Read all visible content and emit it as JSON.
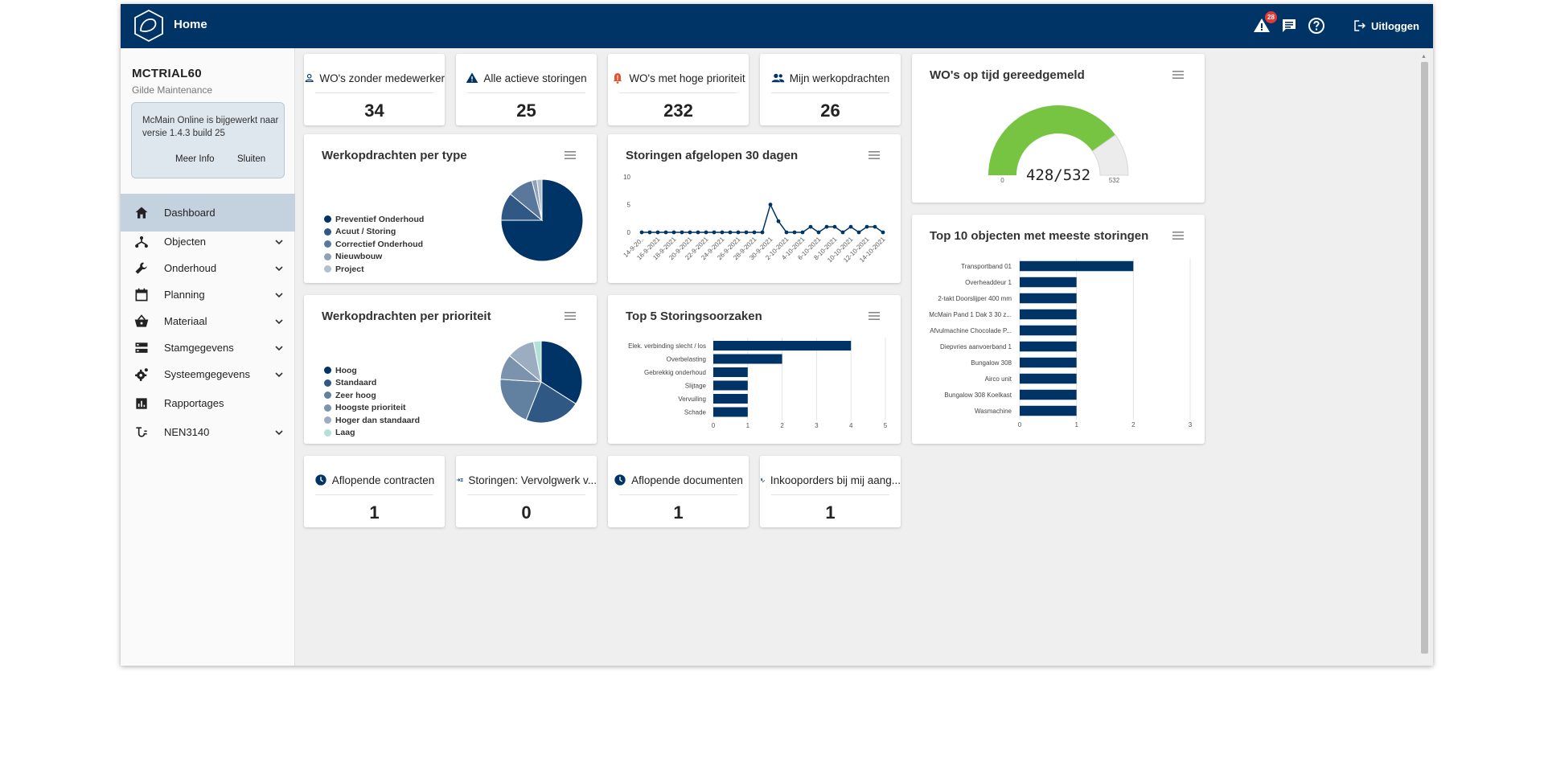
{
  "topbar": {
    "title": "Home",
    "notification_count": "28",
    "logout_label": "Uitloggen"
  },
  "sidebar": {
    "org_code": "MCTRIAL60",
    "org_name": "Gilde Maintenance",
    "update_notice": {
      "text": "McMain Online is bijgewerkt naar versie 1.4.3 build 25",
      "more_info": "Meer Info",
      "close": "Sluiten"
    },
    "items": [
      {
        "label": "Dashboard",
        "icon": "home-icon",
        "active": true,
        "expandable": false
      },
      {
        "label": "Objecten",
        "icon": "hierarchy-icon",
        "expandable": true
      },
      {
        "label": "Onderhoud",
        "icon": "wrench-icon",
        "expandable": true
      },
      {
        "label": "Planning",
        "icon": "calendar-icon",
        "expandable": true
      },
      {
        "label": "Materiaal",
        "icon": "basket-icon",
        "expandable": true
      },
      {
        "label": "Stamgegevens",
        "icon": "storage-icon",
        "expandable": true
      },
      {
        "label": "Systeemgegevens",
        "icon": "gear-icon",
        "expandable": true
      },
      {
        "label": "Rapportages",
        "icon": "bar-chart-icon",
        "expandable": false
      },
      {
        "label": "NEN3140",
        "icon": "electric-icon",
        "expandable": true
      }
    ]
  },
  "kpis_top": [
    {
      "title": "WO's zonder medewerker",
      "value": "34",
      "icon": "person-outline-icon"
    },
    {
      "title": "Alle actieve storingen",
      "value": "25",
      "icon": "warning-icon"
    },
    {
      "title": "WO's met hoge prioriteit",
      "value": "232",
      "icon": "alarm-bell-icon"
    },
    {
      "title": "Mijn werkopdrachten",
      "value": "26",
      "icon": "people-icon"
    }
  ],
  "kpis_bottom": [
    {
      "title": "Aflopende contracten",
      "value": "1",
      "icon": "clock-icon"
    },
    {
      "title": "Storingen: Vervolgwerk v...",
      "value": "0",
      "icon": "arrow-list-icon"
    },
    {
      "title": "Aflopende documenten",
      "value": "1",
      "icon": "clock-icon"
    },
    {
      "title": "Inkooporders bij mij aang...",
      "value": "1",
      "icon": "dollar-check-icon"
    }
  ],
  "colors": {
    "primary": "#003466",
    "gauge_green": "#76c442",
    "gauge_rest": "#ececec",
    "bar": "#003466",
    "badge": "#e53935",
    "active_nav": "#c4d2e0"
  },
  "charts": {
    "type_pie": {
      "title": "Werkopdrachten per type",
      "chart_data": {
        "type": "pie",
        "categories": [
          "Preventief Onderhoud",
          "Acuut / Storing",
          "Correctief Onderhoud",
          "Nieuwbouw",
          "Project"
        ],
        "values": [
          75,
          11,
          10,
          2,
          2
        ],
        "colors": [
          "#003466",
          "#2f5984",
          "#59789b",
          "#8ea1b7",
          "#b2bfcd"
        ],
        "legend": "left"
      }
    },
    "priority_pie": {
      "title": "Werkopdrachten per prioriteit",
      "chart_data": {
        "type": "pie",
        "categories": [
          "Hoog",
          "Standaard",
          "Zeer hoog",
          "Hoogste prioriteit",
          "Hoger dan standaard",
          "Laag"
        ],
        "values": [
          34,
          22,
          20,
          10,
          11,
          3
        ],
        "colors": [
          "#003466",
          "#2f5984",
          "#62809f",
          "#7b93ad",
          "#9cadc1",
          "#b2e2d7"
        ],
        "legend": "left"
      }
    },
    "line": {
      "title": "Storingen afgelopen 30 dagen",
      "chart_data": {
        "type": "line",
        "x": [
          "14-9-20..",
          "15-9-2021",
          "16-9-2021",
          "17-9-2021",
          "18-9-2021",
          "19-9-2021",
          "20-9-2021",
          "21-9-2021",
          "22-9-2021",
          "23-9-2021",
          "24-9-2021",
          "25-9-2021",
          "26-9-2021",
          "27-9-2021",
          "28-9-2021",
          "29-9-2021",
          "30-9-2021",
          "1-10-2021",
          "2-10-2021",
          "3-10-2021",
          "4-10-2021",
          "5-10-2021",
          "6-10-2021",
          "7-10-2021",
          "8-10-2021",
          "9-10-2021",
          "10-10-2021",
          "11-10-2021",
          "12-10-2021",
          "13-10-2021",
          "14-10-2021"
        ],
        "tick_labels": [
          "14-9-20..",
          "16-9-2021",
          "18-9-2021",
          "20-9-2021",
          "22-9-2021",
          "24-9-2021",
          "26-9-2021",
          "28-9-2021",
          "30-9-2021",
          "2-10-2021",
          "4-10-2021",
          "6-10-2021",
          "8-10-2021",
          "10-10-2021",
          "12-10-2021",
          "14-10-2021"
        ],
        "values": [
          0,
          0,
          0,
          0,
          0,
          0,
          0,
          0,
          0,
          0,
          0,
          0,
          0,
          0,
          0,
          0,
          5,
          2,
          0,
          0,
          0,
          1,
          0,
          1,
          1,
          0,
          1,
          0,
          1,
          1,
          0
        ],
        "ylim": [
          0,
          10
        ],
        "yticks": [
          0,
          5,
          10
        ],
        "grid": false
      }
    },
    "causes": {
      "title": "Top 5 Storingsoorzaken",
      "chart_data": {
        "type": "bar",
        "orientation": "horizontal",
        "categories": [
          "Elek. verbinding slecht / los",
          "Overbelasting",
          "Gebrekkig onderhoud",
          "Slijtage",
          "Vervuiling",
          "Schade"
        ],
        "values": [
          4,
          2,
          1,
          1,
          1,
          1
        ],
        "xlim": [
          0,
          5
        ],
        "xticks": [
          0,
          1,
          2,
          3,
          4,
          5
        ],
        "grid": true
      }
    },
    "gauge": {
      "title": "WO's op tijd gereedgemeld",
      "chart_data": {
        "type": "gauge",
        "value": 428,
        "min": 0,
        "max": 532,
        "label": "428/532",
        "min_label": "0",
        "max_label": "532"
      }
    },
    "top10": {
      "title": "Top 10 objecten met meeste storingen",
      "chart_data": {
        "type": "bar",
        "orientation": "horizontal",
        "categories": [
          "Transportband 01",
          "Overheaddeur 1",
          "2-takt Doorslijper 400 mm",
          "McMain Pand 1 Dak 3 30 z...",
          "Afvulmachine Chocolade P...",
          "Diepvries aanvoerband 1",
          "Bungalow 308",
          "Airco unit",
          "Bungalow 308 Koelkast",
          "Wasmachine"
        ],
        "values": [
          2,
          1,
          1,
          1,
          1,
          1,
          1,
          1,
          1,
          1
        ],
        "xlim": [
          0,
          3
        ],
        "xticks": [
          0,
          1,
          2,
          3
        ],
        "grid": true
      }
    }
  }
}
